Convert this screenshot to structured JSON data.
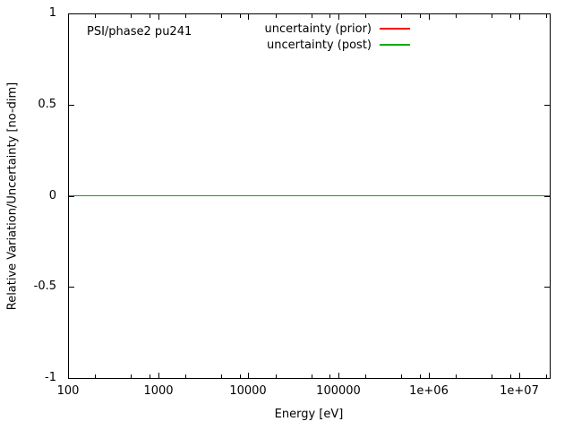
{
  "figure": {
    "plot_title": "PSI/phase2 pu241",
    "xlabel": "Energy [eV]",
    "ylabel": "Relative Variation/Uncertainty [no-dim]"
  },
  "legend": {
    "entries": [
      {
        "label": "uncertainty (prior)",
        "color": "#ff0000"
      },
      {
        "label": "uncertainty (post)",
        "color": "#00b000"
      }
    ]
  },
  "axes": {
    "x": {
      "scale": "log",
      "min": 100,
      "max": 22000000,
      "major_ticks": [
        {
          "value": 100,
          "label": "100"
        },
        {
          "value": 1000,
          "label": "1000"
        },
        {
          "value": 10000,
          "label": "10000"
        },
        {
          "value": 100000,
          "label": "100000"
        },
        {
          "value": 1000000,
          "label": "1e+06"
        },
        {
          "value": 10000000,
          "label": "1e+07"
        }
      ],
      "minor_tick_multipliers": [
        2,
        5,
        8
      ]
    },
    "y": {
      "scale": "linear",
      "min": -1,
      "max": 1,
      "major_ticks": [
        {
          "value": 1,
          "label": "1"
        },
        {
          "value": 0.5,
          "label": "0.5"
        },
        {
          "value": 0,
          "label": "0"
        },
        {
          "value": -0.5,
          "label": "-0.5"
        },
        {
          "value": -1,
          "label": "-1"
        }
      ]
    }
  },
  "chart_data": {
    "type": "line",
    "title": "PSI/phase2 pu241",
    "xlabel": "Energy [eV]",
    "ylabel": "Relative Variation/Uncertainty [no-dim]",
    "xscale": "log",
    "yscale": "linear",
    "xlim": [
      100,
      22000000
    ],
    "ylim": [
      -1,
      1
    ],
    "grid": false,
    "legend_position": "top-right-inside",
    "series": [
      {
        "name": "uncertainty (prior)",
        "color": "#ff0000",
        "x": [
          100,
          22000000
        ],
        "y": [
          0,
          0
        ]
      },
      {
        "name": "uncertainty (post)",
        "color": "#00b000",
        "x": [
          100,
          22000000
        ],
        "y": [
          0,
          0
        ]
      }
    ]
  }
}
